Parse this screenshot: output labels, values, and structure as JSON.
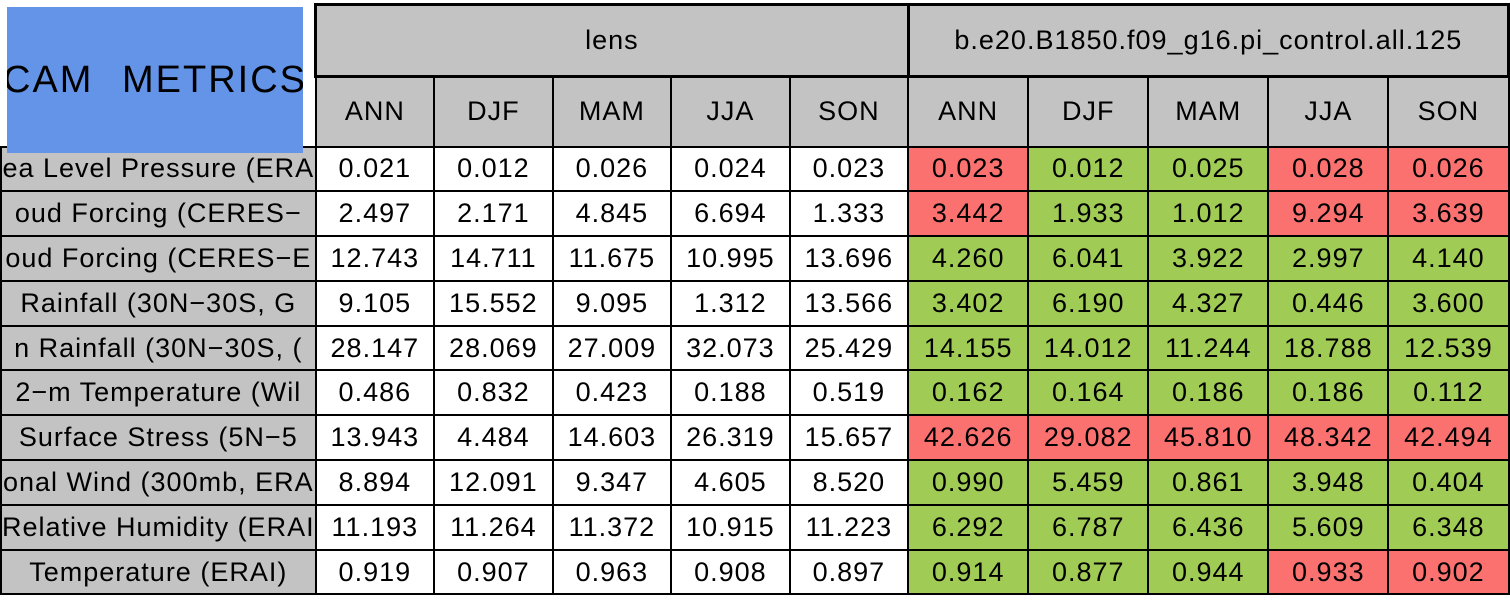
{
  "title": "CAM METRICS",
  "chart_data": {
    "type": "table",
    "title": "CAM METRICS",
    "column_groups": [
      {
        "label": "lens",
        "seasons": [
          "ANN",
          "DJF",
          "MAM",
          "JJA",
          "SON"
        ]
      },
      {
        "label": "b.e20.B1850.f09_g16.pi_control.all.125",
        "seasons": [
          "ANN",
          "DJF",
          "MAM",
          "JJA",
          "SON"
        ]
      }
    ],
    "rows": [
      {
        "label": "ea Level Pressure (ERA",
        "lens": [
          "0.021",
          "0.012",
          "0.026",
          "0.024",
          "0.023"
        ],
        "run": [
          "0.023",
          "0.012",
          "0.025",
          "0.028",
          "0.026"
        ],
        "run_status": [
          "worse",
          "better",
          "better",
          "worse",
          "worse"
        ]
      },
      {
        "label": "oud Forcing (CERES−",
        "lens": [
          "2.497",
          "2.171",
          "4.845",
          "6.694",
          "1.333"
        ],
        "run": [
          "3.442",
          "1.933",
          "1.012",
          "9.294",
          "3.639"
        ],
        "run_status": [
          "worse",
          "better",
          "better",
          "worse",
          "worse"
        ]
      },
      {
        "label": "oud Forcing (CERES−E",
        "lens": [
          "12.743",
          "14.711",
          "11.675",
          "10.995",
          "13.696"
        ],
        "run": [
          "4.260",
          "6.041",
          "3.922",
          "2.997",
          "4.140"
        ],
        "run_status": [
          "better",
          "better",
          "better",
          "better",
          "better"
        ]
      },
      {
        "label": "Rainfall (30N−30S, G",
        "lens": [
          "9.105",
          "15.552",
          "9.095",
          "1.312",
          "13.566"
        ],
        "run": [
          "3.402",
          "6.190",
          "4.327",
          "0.446",
          "3.600"
        ],
        "run_status": [
          "better",
          "better",
          "better",
          "better",
          "better"
        ]
      },
      {
        "label": "n Rainfall (30N−30S, (",
        "lens": [
          "28.147",
          "28.069",
          "27.009",
          "32.073",
          "25.429"
        ],
        "run": [
          "14.155",
          "14.012",
          "11.244",
          "18.788",
          "12.539"
        ],
        "run_status": [
          "better",
          "better",
          "better",
          "better",
          "better"
        ]
      },
      {
        "label": "2−m Temperature (Wil",
        "lens": [
          "0.486",
          "0.832",
          "0.423",
          "0.188",
          "0.519"
        ],
        "run": [
          "0.162",
          "0.164",
          "0.186",
          "0.186",
          "0.112"
        ],
        "run_status": [
          "better",
          "better",
          "better",
          "better",
          "better"
        ]
      },
      {
        "label": "Surface Stress (5N−5",
        "lens": [
          "13.943",
          "4.484",
          "14.603",
          "26.319",
          "15.657"
        ],
        "run": [
          "42.626",
          "29.082",
          "45.810",
          "48.342",
          "42.494"
        ],
        "run_status": [
          "worse",
          "worse",
          "worse",
          "worse",
          "worse"
        ]
      },
      {
        "label": "onal Wind (300mb, ERA",
        "lens": [
          "8.894",
          "12.091",
          "9.347",
          "4.605",
          "8.520"
        ],
        "run": [
          "0.990",
          "5.459",
          "0.861",
          "3.948",
          "0.404"
        ],
        "run_status": [
          "better",
          "better",
          "better",
          "better",
          "better"
        ]
      },
      {
        "label": "Relative Humidity (ERAI",
        "lens": [
          "11.193",
          "11.264",
          "11.372",
          "10.915",
          "11.223"
        ],
        "run": [
          "6.292",
          "6.787",
          "6.436",
          "5.609",
          "6.348"
        ],
        "run_status": [
          "better",
          "better",
          "better",
          "better",
          "better"
        ]
      },
      {
        "label": "Temperature (ERAI)",
        "lens": [
          "0.919",
          "0.907",
          "0.963",
          "0.908",
          "0.897"
        ],
        "run": [
          "0.914",
          "0.877",
          "0.944",
          "0.933",
          "0.902"
        ],
        "run_status": [
          "better",
          "better",
          "better",
          "worse",
          "worse"
        ]
      }
    ],
    "colors": {
      "title_bg": "#6494E8",
      "header_bg": "#C3C3C3",
      "better": "#A0CC55",
      "worse": "#FA7170",
      "neutral": "#FFFFFF",
      "border": "#000000"
    },
    "grid": true,
    "legend_position": "none"
  }
}
